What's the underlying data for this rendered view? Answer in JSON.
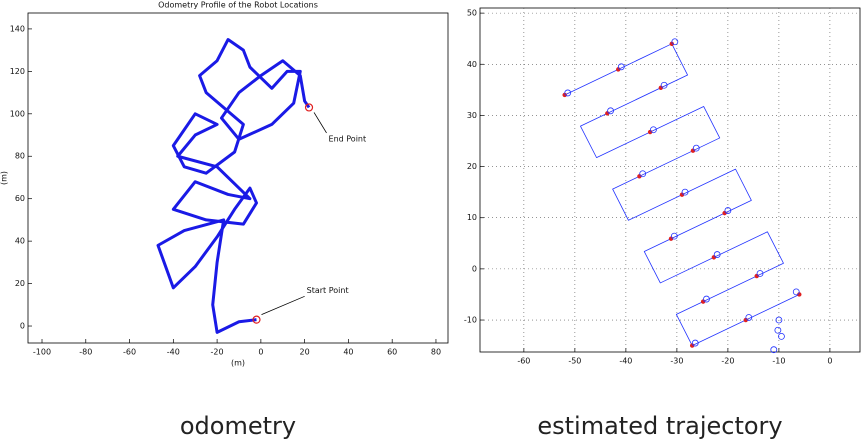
{
  "chart_data": [
    {
      "type": "line",
      "title": "Odometry Profile of the Robot Locations",
      "x_label": "(m)",
      "y_label": "(m)",
      "caption": "odometry",
      "xlim": [
        -106.4,
        85.5
      ],
      "ylim": [
        -8,
        147.5
      ],
      "xticks": [
        -100,
        -80,
        -60,
        -40,
        -20,
        0,
        20,
        40,
        60,
        80
      ],
      "yticks": [
        0,
        20,
        40,
        60,
        80,
        100,
        120,
        140
      ],
      "grid": false,
      "series": [
        {
          "style": "line",
          "color": "#1a1ae6",
          "x": [
            -2,
            -10,
            -20,
            -22,
            -20,
            -17,
            -35,
            -47,
            -40,
            -30,
            -20,
            -12,
            -5,
            -2,
            -8,
            -25,
            -40,
            -30,
            -15,
            -5,
            -20,
            -38,
            -30,
            -20,
            -30,
            -40,
            -35,
            -25,
            -12,
            -8,
            -25,
            -28,
            -20,
            -15,
            -8,
            -5,
            5,
            12,
            18,
            15,
            5,
            -10,
            -18,
            -10,
            0,
            10,
            18,
            20,
            22
          ],
          "y": [
            3,
            2,
            -3,
            10,
            30,
            50,
            45,
            38,
            18,
            28,
            42,
            55,
            65,
            58,
            48,
            50,
            55,
            68,
            62,
            60,
            75,
            80,
            90,
            95,
            100,
            85,
            75,
            72,
            82,
            95,
            110,
            118,
            125,
            135,
            130,
            122,
            112,
            120,
            120,
            105,
            95,
            88,
            98,
            110,
            118,
            125,
            118,
            106,
            103
          ]
        }
      ],
      "annotations": [
        {
          "text": "End Point",
          "x": 22,
          "y": 103,
          "text_x": 30,
          "text_y": 91
        },
        {
          "text": "Start Point",
          "x": -2,
          "y": 3,
          "text_x": 20,
          "text_y": 14
        }
      ]
    },
    {
      "type": "line",
      "caption": "estimated trajectory",
      "xlim": [
        -68.6,
        5.9
      ],
      "ylim": [
        -16.25,
        51
      ],
      "xticks": [
        -60,
        -50,
        -40,
        -30,
        -20,
        -10,
        0
      ],
      "yticks": [
        -10,
        0,
        10,
        20,
        30,
        40,
        50
      ],
      "grid": true,
      "series": [
        {
          "style": "line",
          "color": "#2233ff",
          "x": [
            -52,
            -31,
            -27.9,
            -48.9,
            -45.75,
            -24.75,
            -21.6,
            -42.6,
            -39.5,
            -18.5,
            -15.4,
            -36.4,
            -33.25,
            -12.25,
            -9.1,
            -30.1,
            -27,
            -6
          ],
          "y": [
            34,
            44,
            37.9,
            27.9,
            21.75,
            31.75,
            25.6,
            15.6,
            9.5,
            19.5,
            13.4,
            3.4,
            -2.75,
            7.25,
            1.1,
            -8.9,
            -15,
            -5
          ]
        },
        {
          "style": "dot",
          "color": "#e02020",
          "x": [
            -41.5,
            -35.25,
            -29,
            -22.75,
            -16.5,
            -43.65,
            -33.15,
            -37.35,
            -26.85,
            -31.15,
            -20.65,
            -24.85,
            -14.35,
            -52,
            -31,
            -27,
            -6
          ],
          "y": [
            39,
            26.75,
            14.5,
            2.25,
            -10,
            30.4,
            35.4,
            18.1,
            23.1,
            5.9,
            10.9,
            -6.4,
            -1.4,
            34,
            44,
            -15,
            -5
          ]
        },
        {
          "style": "circle",
          "color": "#2233ff",
          "x": [
            -40.9,
            -34.6,
            -28.4,
            -22.1,
            -15.9,
            -43,
            -32.5,
            -36.7,
            -26.2,
            -30.5,
            -20,
            -24.2,
            -13.7,
            -51.4,
            -30.4,
            -26.4,
            -6.6,
            -10,
            -10.2,
            -11,
            -9.5
          ],
          "y": [
            39.5,
            27.2,
            15,
            2.8,
            -9.5,
            30.9,
            35.9,
            18.6,
            23.6,
            6.4,
            11.4,
            -5.9,
            -0.9,
            34.4,
            44.4,
            -14.5,
            -4.5,
            -10,
            -12,
            -15.8,
            -13.2
          ]
        }
      ]
    }
  ]
}
